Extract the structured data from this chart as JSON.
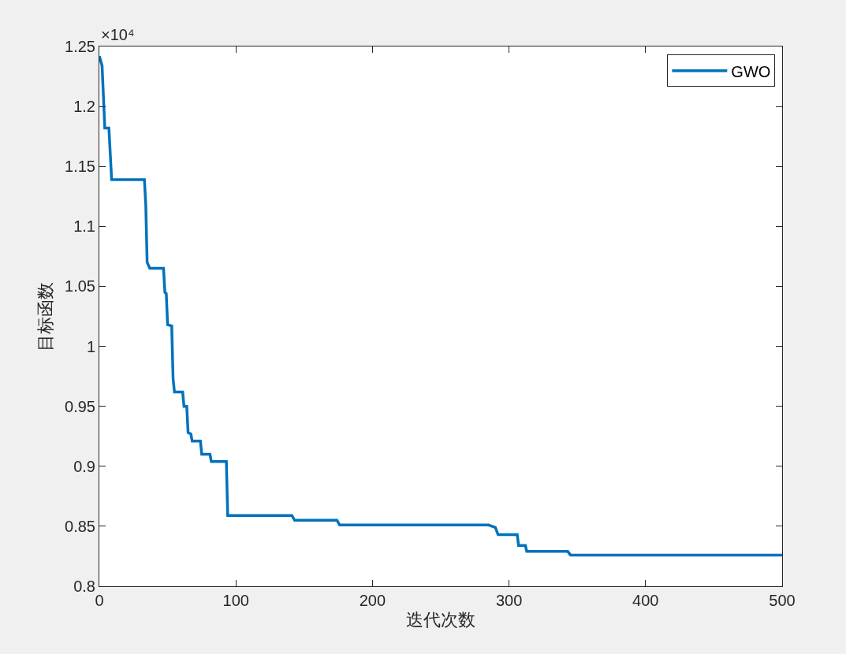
{
  "chart_data": {
    "type": "line",
    "xlabel": "迭代次数",
    "ylabel": "目标函数",
    "annotations": [
      "×10⁴"
    ],
    "x": [
      0,
      2,
      3,
      4,
      7,
      9,
      33,
      34,
      35,
      37,
      47,
      48,
      49,
      50,
      53,
      54,
      55,
      61,
      62,
      64,
      65,
      67,
      68,
      74,
      75,
      81,
      82,
      93,
      94,
      141,
      143,
      174,
      176,
      285,
      290,
      292,
      306,
      307,
      312,
      313,
      343,
      345,
      500
    ],
    "series": [
      {
        "name": "GWO",
        "color": "#0072bd",
        "values": [
          1.242,
          1.234,
          1.208,
          1.182,
          1.182,
          1.139,
          1.139,
          1.118,
          1.07,
          1.065,
          1.065,
          1.045,
          1.044,
          1.018,
          1.017,
          0.973,
          0.962,
          0.962,
          0.95,
          0.95,
          0.928,
          0.927,
          0.921,
          0.921,
          0.91,
          0.91,
          0.904,
          0.904,
          0.859,
          0.859,
          0.855,
          0.855,
          0.851,
          0.851,
          0.849,
          0.843,
          0.843,
          0.834,
          0.834,
          0.829,
          0.829,
          0.826,
          0.826
        ]
      }
    ],
    "xlim": [
      0,
      500
    ],
    "xticks": [
      0,
      100,
      200,
      300,
      400,
      500
    ],
    "ylim": [
      0.8,
      1.25
    ],
    "yticks": [
      0.8,
      0.85,
      0.9,
      0.95,
      1,
      1.05,
      1.1,
      1.15,
      1.2,
      1.25
    ],
    "grid": false,
    "legend": "top right",
    "marker": "none",
    "line_style": "solid"
  }
}
